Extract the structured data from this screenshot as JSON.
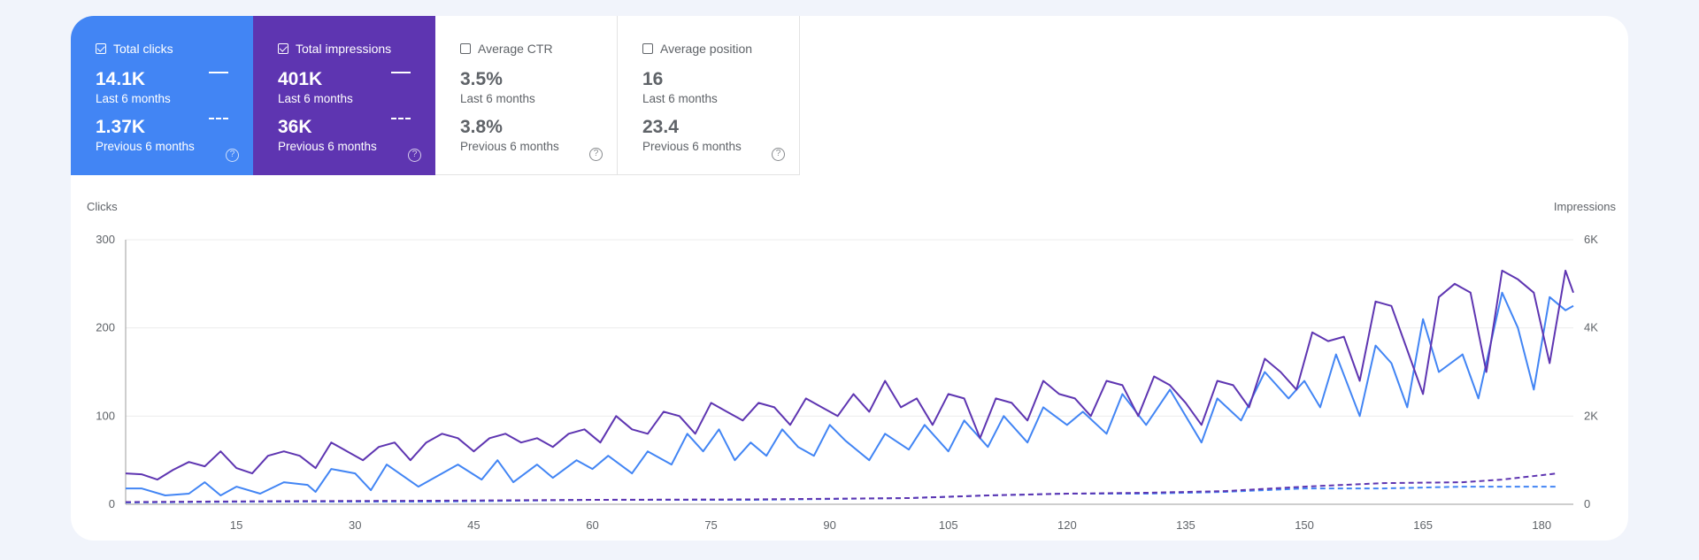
{
  "metrics": [
    {
      "label": "Total clicks",
      "checked": true,
      "value": "14.1K",
      "period": "Last 6 months",
      "prev_value": "1.37K",
      "prev_period": "Previous 6 months"
    },
    {
      "label": "Total impressions",
      "checked": true,
      "value": "401K",
      "period": "Last 6 months",
      "prev_value": "36K",
      "prev_period": "Previous 6 months"
    },
    {
      "label": "Average CTR",
      "checked": false,
      "value": "3.5%",
      "period": "Last 6 months",
      "prev_value": "3.8%",
      "prev_period": "Previous 6 months"
    },
    {
      "label": "Average position",
      "checked": false,
      "value": "16",
      "period": "Last 6 months",
      "prev_value": "23.4",
      "prev_period": "Previous 6 months"
    }
  ],
  "help_glyph": "?",
  "icons": {
    "help": "help-circle-icon",
    "checkbox": "checkbox-icon"
  },
  "colors": {
    "clicks": "#4285f4",
    "impressions": "#5e35b1",
    "grid": "#ececec",
    "axis": "#9e9e9e"
  },
  "chart_data": {
    "type": "line",
    "xlabel": "",
    "ylabel_left": "Clicks",
    "ylabel_right": "Impressions",
    "xlim": [
      1,
      184
    ],
    "ylim_left": [
      0,
      300
    ],
    "ylim_right": [
      0,
      6000
    ],
    "x_ticks": [
      15,
      30,
      45,
      60,
      75,
      90,
      105,
      120,
      135,
      150,
      165,
      180
    ],
    "y_ticks_left": [
      "0",
      "100",
      "200",
      "300"
    ],
    "y_ticks_right": [
      "0",
      "2K",
      "4K",
      "6K"
    ],
    "grid": true,
    "series": [
      {
        "name": "Total clicks",
        "axis": "left",
        "style": "solid",
        "key_points": [
          [
            1,
            18
          ],
          [
            3,
            18
          ],
          [
            6,
            10
          ],
          [
            9,
            12
          ],
          [
            11,
            25
          ],
          [
            13,
            10
          ],
          [
            15,
            20
          ],
          [
            18,
            12
          ],
          [
            21,
            25
          ],
          [
            24,
            22
          ],
          [
            25,
            14
          ],
          [
            27,
            40
          ],
          [
            30,
            35
          ],
          [
            32,
            16
          ],
          [
            34,
            45
          ],
          [
            38,
            20
          ],
          [
            41,
            35
          ],
          [
            43,
            45
          ],
          [
            46,
            28
          ],
          [
            48,
            50
          ],
          [
            50,
            25
          ],
          [
            53,
            45
          ],
          [
            55,
            30
          ],
          [
            58,
            50
          ],
          [
            60,
            40
          ],
          [
            62,
            55
          ],
          [
            65,
            35
          ],
          [
            67,
            60
          ],
          [
            70,
            45
          ],
          [
            72,
            80
          ],
          [
            74,
            60
          ],
          [
            76,
            85
          ],
          [
            78,
            50
          ],
          [
            80,
            70
          ],
          [
            82,
            55
          ],
          [
            84,
            85
          ],
          [
            86,
            65
          ],
          [
            88,
            55
          ],
          [
            90,
            90
          ],
          [
            92,
            72
          ],
          [
            95,
            50
          ],
          [
            97,
            80
          ],
          [
            100,
            62
          ],
          [
            102,
            90
          ],
          [
            105,
            60
          ],
          [
            107,
            95
          ],
          [
            110,
            65
          ],
          [
            112,
            100
          ],
          [
            115,
            70
          ],
          [
            117,
            110
          ],
          [
            120,
            90
          ],
          [
            122,
            105
          ],
          [
            125,
            80
          ],
          [
            127,
            125
          ],
          [
            130,
            90
          ],
          [
            133,
            130
          ],
          [
            135,
            100
          ],
          [
            137,
            70
          ],
          [
            139,
            120
          ],
          [
            142,
            95
          ],
          [
            145,
            150
          ],
          [
            148,
            120
          ],
          [
            150,
            140
          ],
          [
            152,
            110
          ],
          [
            154,
            170
          ],
          [
            157,
            100
          ],
          [
            159,
            180
          ],
          [
            161,
            160
          ],
          [
            163,
            110
          ],
          [
            165,
            210
          ],
          [
            167,
            150
          ],
          [
            170,
            170
          ],
          [
            172,
            120
          ],
          [
            175,
            240
          ],
          [
            177,
            200
          ],
          [
            179,
            130
          ],
          [
            181,
            235
          ],
          [
            183,
            220
          ],
          [
            184,
            225
          ]
        ]
      },
      {
        "name": "Total impressions",
        "axis": "right",
        "style": "solid",
        "key_points": [
          [
            1,
            700
          ],
          [
            3,
            680
          ],
          [
            5,
            560
          ],
          [
            7,
            780
          ],
          [
            9,
            960
          ],
          [
            11,
            860
          ],
          [
            13,
            1200
          ],
          [
            15,
            820
          ],
          [
            17,
            700
          ],
          [
            19,
            1100
          ],
          [
            21,
            1200
          ],
          [
            23,
            1100
          ],
          [
            25,
            820
          ],
          [
            27,
            1400
          ],
          [
            29,
            1200
          ],
          [
            31,
            1000
          ],
          [
            33,
            1300
          ],
          [
            35,
            1400
          ],
          [
            37,
            1000
          ],
          [
            39,
            1400
          ],
          [
            41,
            1600
          ],
          [
            43,
            1500
          ],
          [
            45,
            1200
          ],
          [
            47,
            1500
          ],
          [
            49,
            1600
          ],
          [
            51,
            1400
          ],
          [
            53,
            1500
          ],
          [
            55,
            1300
          ],
          [
            57,
            1600
          ],
          [
            59,
            1700
          ],
          [
            61,
            1400
          ],
          [
            63,
            2000
          ],
          [
            65,
            1700
          ],
          [
            67,
            1600
          ],
          [
            69,
            2100
          ],
          [
            71,
            2000
          ],
          [
            73,
            1600
          ],
          [
            75,
            2300
          ],
          [
            77,
            2100
          ],
          [
            79,
            1900
          ],
          [
            81,
            2300
          ],
          [
            83,
            2200
          ],
          [
            85,
            1800
          ],
          [
            87,
            2400
          ],
          [
            89,
            2200
          ],
          [
            91,
            2000
          ],
          [
            93,
            2500
          ],
          [
            95,
            2100
          ],
          [
            97,
            2800
          ],
          [
            99,
            2200
          ],
          [
            101,
            2400
          ],
          [
            103,
            1800
          ],
          [
            105,
            2500
          ],
          [
            107,
            2400
          ],
          [
            109,
            1500
          ],
          [
            111,
            2400
          ],
          [
            113,
            2300
          ],
          [
            115,
            1900
          ],
          [
            117,
            2800
          ],
          [
            119,
            2500
          ],
          [
            121,
            2400
          ],
          [
            123,
            2000
          ],
          [
            125,
            2800
          ],
          [
            127,
            2700
          ],
          [
            129,
            2000
          ],
          [
            131,
            2900
          ],
          [
            133,
            2700
          ],
          [
            135,
            2300
          ],
          [
            137,
            1800
          ],
          [
            139,
            2800
          ],
          [
            141,
            2700
          ],
          [
            143,
            2200
          ],
          [
            145,
            3300
          ],
          [
            147,
            3000
          ],
          [
            149,
            2600
          ],
          [
            151,
            3900
          ],
          [
            153,
            3700
          ],
          [
            155,
            3800
          ],
          [
            157,
            2800
          ],
          [
            159,
            4600
          ],
          [
            161,
            4500
          ],
          [
            163,
            3500
          ],
          [
            165,
            2500
          ],
          [
            167,
            4700
          ],
          [
            169,
            5000
          ],
          [
            171,
            4800
          ],
          [
            173,
            3000
          ],
          [
            175,
            5300
          ],
          [
            177,
            5100
          ],
          [
            179,
            4800
          ],
          [
            181,
            3200
          ],
          [
            183,
            5300
          ],
          [
            184,
            4800
          ]
        ]
      },
      {
        "name": "Previous clicks",
        "axis": "left",
        "style": "dashed",
        "key_points": [
          [
            1,
            2
          ],
          [
            20,
            3
          ],
          [
            40,
            3
          ],
          [
            60,
            5
          ],
          [
            80,
            5
          ],
          [
            100,
            7
          ],
          [
            110,
            10
          ],
          [
            120,
            12
          ],
          [
            130,
            12
          ],
          [
            140,
            14
          ],
          [
            150,
            18
          ],
          [
            160,
            18
          ],
          [
            170,
            20
          ],
          [
            180,
            20
          ],
          [
            182,
            20
          ]
        ]
      },
      {
        "name": "Previous impressions",
        "axis": "right",
        "style": "dashed",
        "key_points": [
          [
            1,
            50
          ],
          [
            20,
            70
          ],
          [
            40,
            80
          ],
          [
            60,
            100
          ],
          [
            80,
            110
          ],
          [
            100,
            140
          ],
          [
            110,
            200
          ],
          [
            120,
            240
          ],
          [
            130,
            260
          ],
          [
            140,
            300
          ],
          [
            150,
            400
          ],
          [
            160,
            480
          ],
          [
            170,
            500
          ],
          [
            175,
            560
          ],
          [
            182,
            700
          ]
        ]
      }
    ]
  }
}
